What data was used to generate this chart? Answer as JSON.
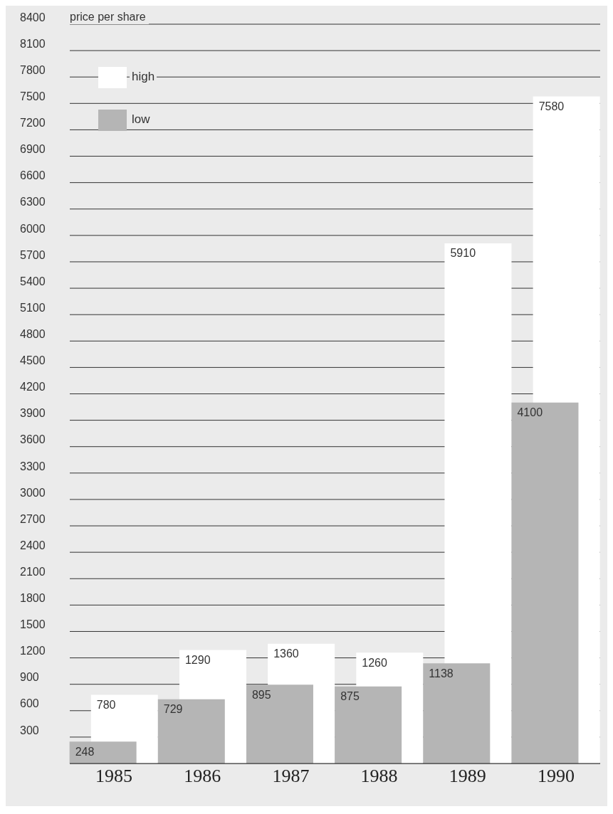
{
  "chart_data": {
    "type": "bar",
    "ylabel": "price per share",
    "categories": [
      "1985",
      "1986",
      "1987",
      "1988",
      "1989",
      "1990"
    ],
    "series": [
      {
        "name": "high",
        "color": "#ffffff",
        "values": [
          780,
          1290,
          1360,
          1260,
          5910,
          7580
        ]
      },
      {
        "name": "low",
        "color": "#b5b5b5",
        "values": [
          248,
          729,
          895,
          875,
          1138,
          4100
        ]
      }
    ],
    "ylim": [
      0,
      8400
    ],
    "yticks": [
      300,
      600,
      900,
      1200,
      1500,
      1800,
      2100,
      2400,
      2700,
      3000,
      3300,
      3600,
      3900,
      4200,
      4500,
      4800,
      5100,
      5400,
      5700,
      6000,
      6300,
      6600,
      6900,
      7200,
      7500,
      7800,
      8100,
      8400
    ],
    "grid": "y",
    "legend": "top left",
    "data_labels": true
  }
}
